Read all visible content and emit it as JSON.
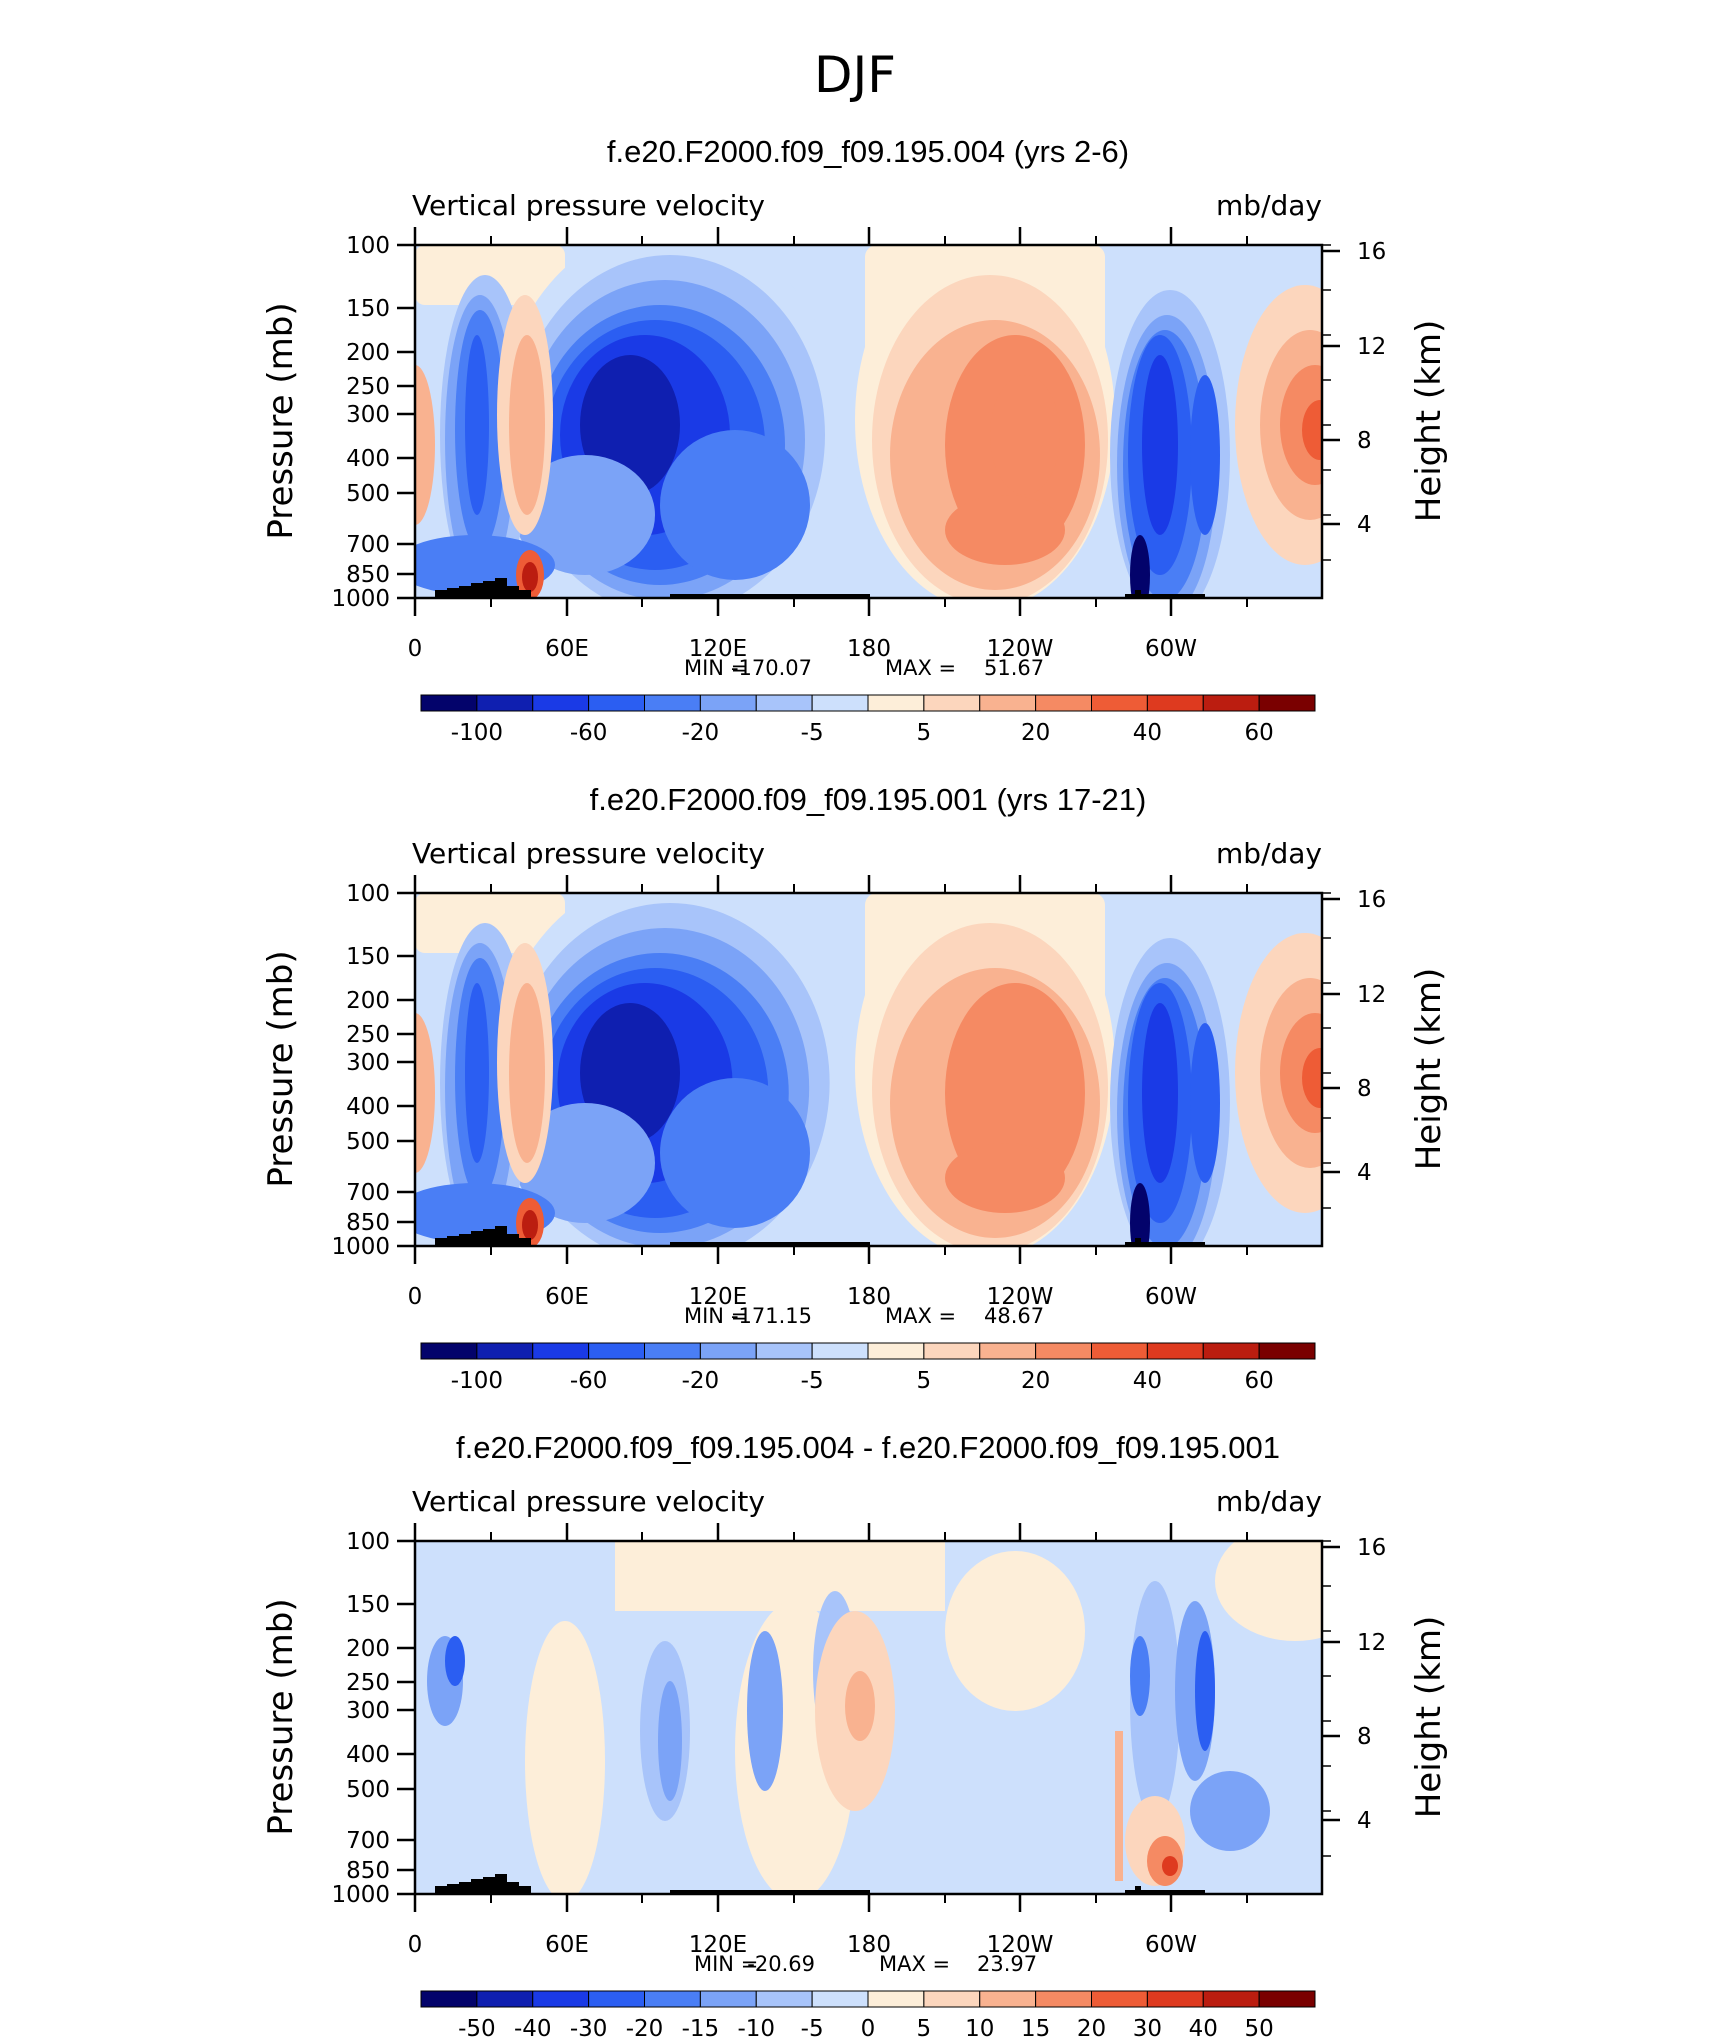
{
  "figure_title": "DJF",
  "colors": {
    "blue_palette": [
      "#03036b",
      "#0f1fb0",
      "#1a3ae6",
      "#2b5ef2",
      "#4a7ef5",
      "#7ba3f7",
      "#a8c4fa",
      "#cde0fc"
    ],
    "red_palette": [
      "#fdeed9",
      "#fcd6bd",
      "#f9b290",
      "#f58a63",
      "#ee5c36",
      "#de3a1f",
      "#bb1d10",
      "#7a0000"
    ],
    "topo": "#000000"
  },
  "chart_data": [
    {
      "type": "heatmap",
      "title": "f.e20.F2000.f09_f09.195.004 (yrs 2-6)",
      "left_label": "Vertical pressure velocity",
      "right_label": "mb/day",
      "ylabel": "Pressure (mb)",
      "y2label": "Height (km)",
      "x_ticks": [
        "0",
        "60E",
        "120E",
        "180",
        "120W",
        "60W"
      ],
      "y_ticks": [
        "100",
        "150",
        "200",
        "250",
        "300",
        "400",
        "500",
        "700",
        "850",
        "1000"
      ],
      "y2_ticks": [
        "16",
        "12",
        "8",
        "4"
      ],
      "stats": {
        "min_label": "MIN =",
        "min_value": "-170.07",
        "max_label": "MAX =",
        "max_value": "51.67"
      },
      "colorbar": {
        "labels": [
          "-100",
          "-60",
          "-20",
          "-5",
          "5",
          "20",
          "40",
          "60"
        ]
      }
    },
    {
      "type": "heatmap",
      "title": "f.e20.F2000.f09_f09.195.001 (yrs 17-21)",
      "left_label": "Vertical pressure velocity",
      "right_label": "mb/day",
      "ylabel": "Pressure (mb)",
      "y2label": "Height (km)",
      "x_ticks": [
        "0",
        "60E",
        "120E",
        "180",
        "120W",
        "60W"
      ],
      "y_ticks": [
        "100",
        "150",
        "200",
        "250",
        "300",
        "400",
        "500",
        "700",
        "850",
        "1000"
      ],
      "y2_ticks": [
        "16",
        "12",
        "8",
        "4"
      ],
      "stats": {
        "min_label": "MIN =",
        "min_value": "-171.15",
        "max_label": "MAX =",
        "max_value": "48.67"
      },
      "colorbar": {
        "labels": [
          "-100",
          "-60",
          "-20",
          "-5",
          "5",
          "20",
          "40",
          "60"
        ]
      }
    },
    {
      "type": "heatmap",
      "title": "f.e20.F2000.f09_f09.195.004 - f.e20.F2000.f09_f09.195.001",
      "left_label": "Vertical pressure velocity",
      "right_label": "mb/day",
      "ylabel": "Pressure (mb)",
      "y2label": "Height (km)",
      "x_ticks": [
        "0",
        "60E",
        "120E",
        "180",
        "120W",
        "60W"
      ],
      "y_ticks": [
        "100",
        "150",
        "200",
        "250",
        "300",
        "400",
        "500",
        "700",
        "850",
        "1000"
      ],
      "y2_ticks": [
        "16",
        "12",
        "8",
        "4"
      ],
      "stats": {
        "min_label": "MIN =",
        "min_value": "-20.69",
        "max_label": "MAX =",
        "max_value": "23.97"
      },
      "colorbar": {
        "labels": [
          "-50",
          "-40",
          "-30",
          "-20",
          "-15",
          "-10",
          "-5",
          "0",
          "5",
          "10",
          "15",
          "20",
          "30",
          "40",
          "50"
        ]
      }
    }
  ]
}
